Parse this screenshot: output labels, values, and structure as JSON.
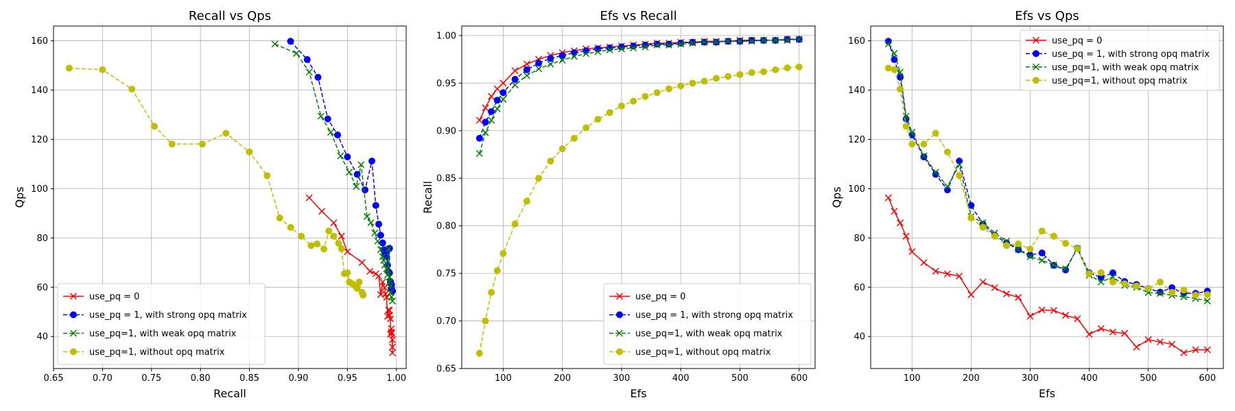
{
  "chart_data": [
    {
      "type": "line",
      "title": "Recall vs Qps",
      "xlabel": "Recall",
      "ylabel": "Qps",
      "xlim": [
        0.65,
        1.01
      ],
      "ylim": [
        27,
        166
      ],
      "xticks": [
        0.65,
        0.7,
        0.75,
        0.8,
        0.85,
        0.9,
        0.95,
        1.0
      ],
      "xtick_labels": [
        "0.65",
        "0.70",
        "0.75",
        "0.80",
        "0.85",
        "0.90",
        "0.95",
        "1.00"
      ],
      "yticks": [
        40,
        60,
        80,
        100,
        120,
        140,
        160
      ],
      "ytick_labels": [
        "40",
        "60",
        "80",
        "100",
        "120",
        "140",
        "160"
      ],
      "grid": true,
      "legend_position": "lower-left",
      "series": [
        {
          "name": "use_pq = 0",
          "color": "#ff0000",
          "marker": "x",
          "dash": "solid",
          "x": [
            0.911,
            0.924,
            0.936,
            0.944,
            0.95,
            0.965,
            0.973,
            0.979,
            0.982,
            0.984,
            0.986,
            0.988,
            0.989,
            0.99,
            0.991,
            0.992,
            0.993,
            0.993,
            0.994,
            0.994,
            0.995,
            0.995,
            0.995,
            0.996,
            0.996,
            0.996
          ],
          "y": [
            96.3,
            90.8,
            86.1,
            80.7,
            74.4,
            70.0,
            66.5,
            65.4,
            64.5,
            57.0,
            62.1,
            59.8,
            57.3,
            55.9,
            48.2,
            50.8,
            50.6,
            48.6,
            47.2,
            40.9,
            43.2,
            41.8,
            41.3,
            35.7,
            38.7,
            33.4
          ]
        },
        {
          "name": "use_pq = 1, with strong opq matrix",
          "color": "#0000ff",
          "marker": "o",
          "dash": "dashed",
          "x": [
            0.892,
            0.909,
            0.92,
            0.93,
            0.94,
            0.95,
            0.96,
            0.968,
            0.975,
            0.979,
            0.982,
            0.984,
            0.986,
            0.987,
            0.988,
            0.989,
            0.99,
            0.991,
            0.992,
            0.993,
            0.993,
            0.994,
            0.994,
            0.995,
            0.995,
            0.996
          ],
          "y": [
            159.8,
            152.4,
            145.2,
            128.3,
            121.8,
            112.9,
            105.8,
            99.5,
            111.2,
            93.2,
            85.6,
            81.1,
            78.0,
            75.2,
            73.1,
            73.9,
            72.4,
            68.9,
            66.3,
            75.8,
            65.8,
            62.3,
            61.8,
            61.1,
            59.5,
            58.4
          ]
        },
        {
          "name": "use_pq=1, with weak opq matrix",
          "color": "#008000",
          "marker": "x",
          "dash": "dashed",
          "x": [
            0.876,
            0.898,
            0.911,
            0.923,
            0.933,
            0.943,
            0.952,
            0.959,
            0.964,
            0.97,
            0.974,
            0.978,
            0.981,
            0.984,
            0.986,
            0.987,
            0.988,
            0.99,
            0.991,
            0.992,
            0.993,
            0.993,
            0.994,
            0.994,
            0.995,
            0.996
          ],
          "y": [
            158.7,
            154.9,
            147.3,
            129.4,
            122.9,
            113.3,
            106.7,
            100.9,
            109.7,
            88.7,
            86.2,
            82.0,
            78.7,
            75.3,
            72.4,
            70.9,
            69.0,
            67.5,
            64.9,
            75.6,
            64.1,
            62.1,
            60.7,
            57.8,
            56.1,
            54.4
          ]
        },
        {
          "name": "use_pq=1, without opq matrix",
          "color": "#bfbf00",
          "marker": "o",
          "dash": "dashed",
          "x": [
            0.666,
            0.7,
            0.73,
            0.753,
            0.771,
            0.802,
            0.826,
            0.85,
            0.868,
            0.881,
            0.892,
            0.903,
            0.913,
            0.919,
            0.926,
            0.931,
            0.936,
            0.941,
            0.944,
            0.947,
            0.95,
            0.952,
            0.955,
            0.958,
            0.96,
            0.962,
            0.965,
            0.966
          ],
          "y": [
            148.9,
            148.3,
            140.4,
            125.3,
            118.1,
            118.1,
            122.5,
            114.9,
            105.3,
            88.1,
            84.3,
            80.7,
            76.9,
            77.6,
            75.5,
            82.8,
            80.7,
            77.8,
            75.6,
            65.5,
            65.9,
            62.1,
            61.4,
            60.5,
            59.5,
            62.1,
            57.9,
            56.8
          ]
        }
      ]
    },
    {
      "type": "line",
      "title": "Efs vs Recall",
      "xlabel": "Efs",
      "ylabel": "Recall",
      "xlim": [
        30,
        627
      ],
      "ylim": [
        0.65,
        1.01
      ],
      "xticks": [
        100,
        200,
        300,
        400,
        500,
        600
      ],
      "xtick_labels": [
        "100",
        "200",
        "300",
        "400",
        "500",
        "600"
      ],
      "yticks": [
        0.65,
        0.7,
        0.75,
        0.8,
        0.85,
        0.9,
        0.95,
        1.0
      ],
      "ytick_labels": [
        "0.65",
        "0.70",
        "0.75",
        "0.80",
        "0.85",
        "0.90",
        "0.95",
        "1.00"
      ],
      "grid": true,
      "legend_position": "lower-right",
      "series": [
        {
          "name": "use_pq = 0",
          "color": "#ff0000",
          "marker": "x",
          "dash": "solid",
          "x": [
            60,
            70,
            80,
            90,
            100,
            120,
            140,
            160,
            180,
            200,
            220,
            240,
            260,
            280,
            300,
            320,
            340,
            360,
            380,
            400,
            420,
            440,
            460,
            480,
            500,
            520,
            540,
            560,
            580,
            600
          ],
          "y": [
            0.911,
            0.924,
            0.936,
            0.944,
            0.95,
            0.963,
            0.97,
            0.975,
            0.979,
            0.982,
            0.984,
            0.986,
            0.987,
            0.988,
            0.989,
            0.99,
            0.991,
            0.992,
            0.992,
            0.993,
            0.993,
            0.994,
            0.994,
            0.994,
            0.995,
            0.995,
            0.995,
            0.995,
            0.996,
            0.996
          ]
        },
        {
          "name": "use_pq = 1, with strong opq matrix",
          "color": "#0000ff",
          "marker": "o",
          "dash": "dashed",
          "x": [
            60,
            70,
            80,
            90,
            100,
            120,
            140,
            160,
            180,
            200,
            220,
            240,
            260,
            280,
            300,
            320,
            340,
            360,
            380,
            400,
            420,
            440,
            460,
            480,
            500,
            520,
            540,
            560,
            580,
            600
          ],
          "y": [
            0.892,
            0.909,
            0.92,
            0.932,
            0.94,
            0.954,
            0.964,
            0.971,
            0.976,
            0.979,
            0.982,
            0.984,
            0.986,
            0.987,
            0.988,
            0.989,
            0.99,
            0.991,
            0.991,
            0.992,
            0.993,
            0.993,
            0.993,
            0.994,
            0.994,
            0.995,
            0.995,
            0.995,
            0.996,
            0.996
          ]
        },
        {
          "name": "use_pq=1, with weak opq matrix",
          "color": "#008000",
          "marker": "x",
          "dash": "dashed",
          "x": [
            60,
            70,
            80,
            90,
            100,
            120,
            140,
            160,
            180,
            200,
            220,
            240,
            260,
            280,
            300,
            320,
            340,
            360,
            380,
            400,
            420,
            440,
            460,
            480,
            500,
            520,
            540,
            560,
            580,
            600
          ],
          "y": [
            0.876,
            0.898,
            0.911,
            0.923,
            0.933,
            0.948,
            0.958,
            0.965,
            0.97,
            0.974,
            0.978,
            0.981,
            0.983,
            0.985,
            0.986,
            0.987,
            0.988,
            0.99,
            0.99,
            0.991,
            0.992,
            0.993,
            0.993,
            0.994,
            0.994,
            0.994,
            0.995,
            0.995,
            0.995,
            0.996
          ]
        },
        {
          "name": "use_pq=1, without opq matrix",
          "color": "#bfbf00",
          "marker": "o",
          "dash": "dashed",
          "x": [
            60,
            70,
            80,
            90,
            100,
            120,
            140,
            160,
            180,
            200,
            220,
            240,
            260,
            280,
            300,
            320,
            340,
            360,
            380,
            400,
            420,
            440,
            460,
            480,
            500,
            520,
            540,
            560,
            580,
            600
          ],
          "y": [
            0.666,
            0.7,
            0.73,
            0.753,
            0.771,
            0.802,
            0.826,
            0.85,
            0.868,
            0.881,
            0.892,
            0.903,
            0.912,
            0.919,
            0.926,
            0.931,
            0.936,
            0.94,
            0.944,
            0.947,
            0.95,
            0.952,
            0.955,
            0.957,
            0.959,
            0.961,
            0.962,
            0.964,
            0.966,
            0.967
          ]
        }
      ]
    },
    {
      "type": "line",
      "title": "Efs vs Qps",
      "xlabel": "Efs",
      "ylabel": "Qps",
      "xlim": [
        30,
        627
      ],
      "ylim": [
        27,
        166
      ],
      "xticks": [
        100,
        200,
        300,
        400,
        500,
        600
      ],
      "xtick_labels": [
        "100",
        "200",
        "300",
        "400",
        "500",
        "600"
      ],
      "yticks": [
        40,
        60,
        80,
        100,
        120,
        140,
        160
      ],
      "ytick_labels": [
        "40",
        "60",
        "80",
        "100",
        "120",
        "140",
        "160"
      ],
      "grid": true,
      "legend_position": "upper-right",
      "series": [
        {
          "name": "use_pq = 0",
          "color": "#ff0000",
          "marker": "x",
          "dash": "solid",
          "x": [
            60,
            70,
            80,
            90,
            100,
            120,
            140,
            160,
            180,
            200,
            220,
            240,
            260,
            280,
            300,
            320,
            340,
            360,
            380,
            400,
            420,
            440,
            460,
            480,
            500,
            520,
            540,
            560,
            580,
            600
          ],
          "y": [
            96.3,
            90.8,
            86.1,
            80.7,
            74.4,
            70.0,
            66.5,
            65.4,
            64.5,
            57.0,
            62.1,
            59.8,
            57.3,
            55.9,
            48.2,
            50.8,
            50.6,
            48.6,
            47.2,
            40.9,
            43.2,
            41.8,
            41.3,
            35.7,
            38.7,
            37.8,
            36.8,
            33.4,
            34.6,
            34.6
          ]
        },
        {
          "name": "use_pq = 1, with strong opq matrix",
          "color": "#0000ff",
          "marker": "o",
          "dash": "dashed",
          "x": [
            60,
            70,
            80,
            90,
            100,
            120,
            140,
            160,
            180,
            200,
            220,
            240,
            260,
            280,
            300,
            320,
            340,
            360,
            380,
            400,
            420,
            440,
            460,
            480,
            500,
            520,
            540,
            560,
            580,
            600
          ],
          "y": [
            159.8,
            152.4,
            145.2,
            128.3,
            121.8,
            112.9,
            105.8,
            99.5,
            111.2,
            93.2,
            85.6,
            81.1,
            78.0,
            75.2,
            73.1,
            73.9,
            68.9,
            67.0,
            75.8,
            65.8,
            64.0,
            65.8,
            62.3,
            61.1,
            59.5,
            58.0,
            59.8,
            57.5,
            57.5,
            58.4
          ]
        },
        {
          "name": "use_pq=1, with weak opq matrix",
          "color": "#008000",
          "marker": "x",
          "dash": "dashed",
          "x": [
            60,
            70,
            80,
            90,
            100,
            120,
            140,
            160,
            180,
            200,
            220,
            240,
            260,
            280,
            300,
            320,
            340,
            360,
            380,
            400,
            420,
            440,
            460,
            480,
            500,
            520,
            540,
            560,
            580,
            600
          ],
          "y": [
            158.7,
            154.9,
            147.3,
            129.4,
            122.9,
            113.3,
            106.7,
            100.9,
            109.7,
            88.7,
            86.2,
            82.0,
            78.7,
            75.3,
            72.4,
            70.9,
            69.0,
            67.5,
            75.6,
            64.9,
            62.1,
            64.1,
            60.7,
            60.0,
            57.8,
            57.5,
            56.7,
            56.1,
            55.4,
            54.4
          ]
        },
        {
          "name": "use_pq=1, without opq matrix",
          "color": "#bfbf00",
          "marker": "o",
          "dash": "dashed",
          "x": [
            60,
            70,
            80,
            90,
            100,
            120,
            140,
            160,
            180,
            200,
            220,
            240,
            260,
            280,
            300,
            320,
            340,
            360,
            380,
            400,
            420,
            440,
            460,
            480,
            500,
            520,
            540,
            560,
            580,
            600
          ],
          "y": [
            148.9,
            148.3,
            140.4,
            125.3,
            118.1,
            118.1,
            122.5,
            114.9,
            105.3,
            88.1,
            84.3,
            80.7,
            76.9,
            77.6,
            75.5,
            82.8,
            80.7,
            77.8,
            75.6,
            65.5,
            65.9,
            62.1,
            61.4,
            60.5,
            59.5,
            62.1,
            57.9,
            58.8,
            56.8,
            57.0
          ]
        }
      ]
    }
  ]
}
